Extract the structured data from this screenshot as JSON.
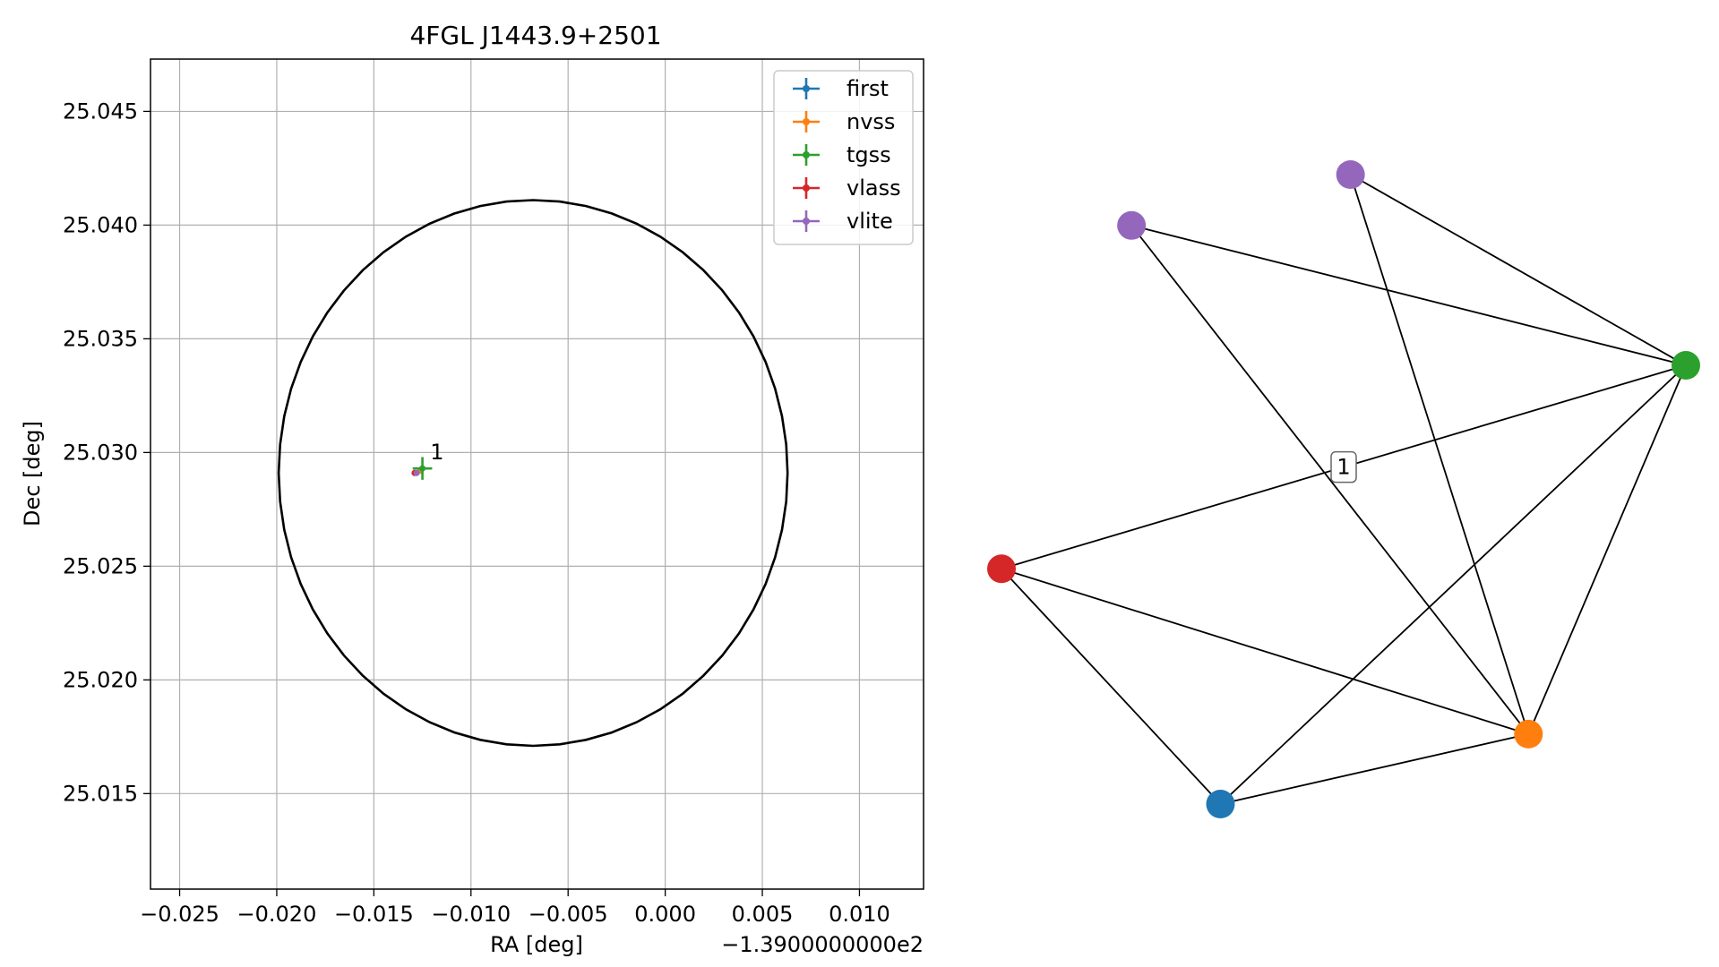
{
  "chart_data": [
    {
      "type": "scatter",
      "title": "4FGL J1443.9+2501",
      "xlabel": "RA [deg]",
      "ylabel": "Dec [deg]",
      "x_offset_label": "−1.3900000000e2",
      "xlim": [
        -0.0265,
        0.0133
      ],
      "ylim": [
        25.0108,
        25.0473
      ],
      "xticks": [
        {
          "v": -0.025,
          "label": "−0.025"
        },
        {
          "v": -0.02,
          "label": "−0.020"
        },
        {
          "v": -0.015,
          "label": "−0.015"
        },
        {
          "v": -0.01,
          "label": "−0.010"
        },
        {
          "v": -0.005,
          "label": "−0.005"
        },
        {
          "v": 0.0,
          "label": "0.000"
        },
        {
          "v": 0.005,
          "label": "0.005"
        },
        {
          "v": 0.01,
          "label": "0.010"
        }
      ],
      "yticks": [
        {
          "v": 25.015,
          "label": "25.015"
        },
        {
          "v": 25.02,
          "label": "25.020"
        },
        {
          "v": 25.025,
          "label": "25.025"
        },
        {
          "v": 25.03,
          "label": "25.030"
        },
        {
          "v": 25.035,
          "label": "25.035"
        },
        {
          "v": 25.04,
          "label": "25.040"
        },
        {
          "v": 25.045,
          "label": "25.045"
        }
      ],
      "grid": true,
      "legend_position": "top-right",
      "ellipse": {
        "center": [
          -0.0068,
          25.0291
        ],
        "semi_axis_x": 0.0131,
        "semi_axis_y": 0.012,
        "color": "#000000"
      },
      "series": [
        {
          "name": "first",
          "color": "#1f77b4",
          "x": -0.0126,
          "y": 25.0292,
          "xerr": 0.0,
          "yerr": 0.0
        },
        {
          "name": "nvss",
          "color": "#ff7f0e",
          "x": -0.0126,
          "y": 25.0292,
          "xerr": 0.0,
          "yerr": 0.0
        },
        {
          "name": "tgss",
          "color": "#2ca02c",
          "x": -0.0125,
          "y": 25.0293,
          "xerr": 0.0005,
          "yerr": 0.0005
        },
        {
          "name": "vlass",
          "color": "#d62728",
          "x": -0.0129,
          "y": 25.0291,
          "xerr": 0.0,
          "yerr": 0.0
        },
        {
          "name": "vlite",
          "color": "#9467bd",
          "x": -0.0128,
          "y": 25.0291,
          "xerr": 0.0001,
          "yerr": 0.0001
        }
      ],
      "annotations": [
        {
          "text": "1",
          "x": -0.0121,
          "y": 25.0297
        }
      ]
    },
    {
      "type": "network",
      "nodes": [
        {
          "id": "purple-top",
          "color": "#9467bd",
          "x": 0.51,
          "y": 0.96
        },
        {
          "id": "purple-left",
          "color": "#9467bd",
          "x": 0.19,
          "y": 0.88
        },
        {
          "id": "green",
          "color": "#2ca02c",
          "x": 1.0,
          "y": 0.66
        },
        {
          "id": "red",
          "color": "#d62728",
          "x": 0.0,
          "y": 0.34
        },
        {
          "id": "orange",
          "color": "#ff7f0e",
          "x": 0.77,
          "y": 0.08
        },
        {
          "id": "blue",
          "color": "#1f77b4",
          "x": 0.32,
          "y": -0.03
        }
      ],
      "edges": [
        [
          "purple-top",
          "green"
        ],
        [
          "purple-top",
          "orange"
        ],
        [
          "purple-left",
          "green"
        ],
        [
          "purple-left",
          "orange"
        ],
        [
          "green",
          "red"
        ],
        [
          "green",
          "blue"
        ],
        [
          "green",
          "orange"
        ],
        [
          "red",
          "orange"
        ],
        [
          "red",
          "blue"
        ],
        [
          "blue",
          "orange"
        ]
      ],
      "edge_labels": [
        {
          "text": "1",
          "edge": [
            "green",
            "red"
          ]
        }
      ]
    }
  ]
}
